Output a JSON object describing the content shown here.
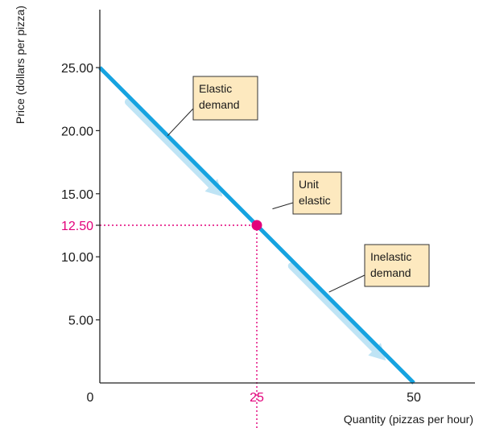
{
  "chart_data": {
    "type": "line",
    "title": "",
    "xlabel": "Quantity (pizzas per hour)",
    "ylabel": "Price (dollars per pizza)",
    "xlim": [
      0,
      60
    ],
    "ylim": [
      0,
      30
    ],
    "x_ticks": [
      {
        "value": 0,
        "label": "0"
      },
      {
        "value": 25,
        "label": "25",
        "highlight": true
      },
      {
        "value": 50,
        "label": "50"
      }
    ],
    "y_ticks": [
      {
        "value": 5,
        "label": "5.00"
      },
      {
        "value": 10,
        "label": "10.00"
      },
      {
        "value": 12.5,
        "label": "12.50",
        "highlight": true
      },
      {
        "value": 15,
        "label": "15.00"
      },
      {
        "value": 20,
        "label": "20.00"
      },
      {
        "value": 25,
        "label": "25.00"
      }
    ],
    "grid": false,
    "legend": "none",
    "series": [
      {
        "x": [
          0,
          50
        ],
        "y": [
          25,
          0
        ]
      }
    ],
    "highlight_point": {
      "x": 25,
      "y": 12.5
    },
    "arrows": [
      {
        "from": [
          5,
          22.5
        ],
        "to": [
          20,
          15
        ]
      },
      {
        "from": [
          31,
          9.5
        ],
        "to": [
          46,
          2
        ]
      }
    ],
    "annotations": [
      {
        "id": "elastic",
        "lines": [
          "Elastic",
          "demand"
        ],
        "point": [
          10.8,
          19.6
        ]
      },
      {
        "id": "unit",
        "lines": [
          "Unit",
          "elastic"
        ],
        "point": [
          27.5,
          13.8
        ]
      },
      {
        "id": "inelastic",
        "lines": [
          "Inelastic",
          "demand"
        ],
        "point": [
          36.5,
          7.2
        ]
      }
    ],
    "colors": {
      "line": "#16a3e0",
      "arrow": "#bfe4f5",
      "point": "#e2007a",
      "guide": "#e2007a",
      "label_box_fill": "#fde9bf",
      "label_box_stroke": "#333333",
      "axis": "#222222"
    }
  }
}
